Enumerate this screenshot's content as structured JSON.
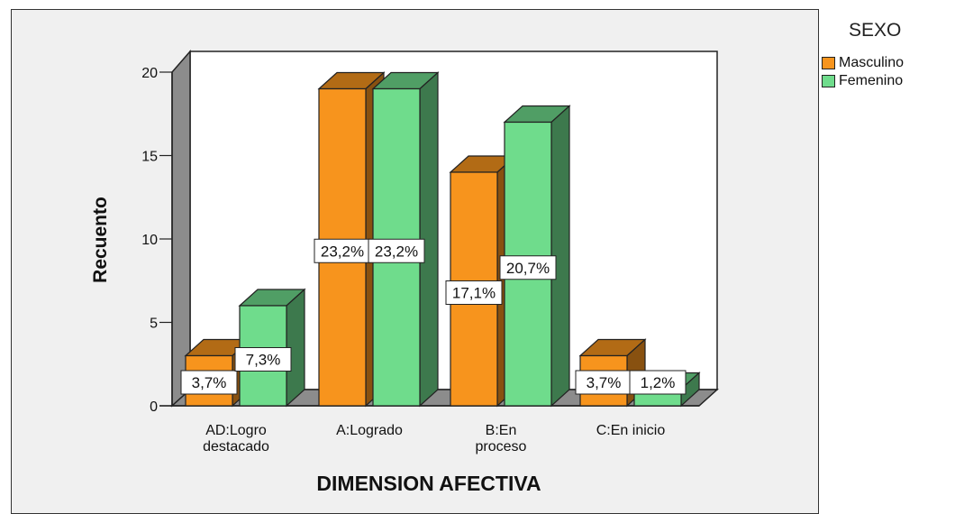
{
  "chart_data": {
    "type": "bar",
    "title": "",
    "xlabel": "DIMENSION AFECTIVA",
    "ylabel": "Recuento",
    "ylim": [
      0,
      20
    ],
    "yticks": [
      "0",
      "5",
      "10",
      "15",
      "20"
    ],
    "categories": [
      [
        "AD:Logro",
        "destacado"
      ],
      [
        "A:Logrado"
      ],
      [
        "B:En",
        "proceso"
      ],
      [
        "C:En inicio"
      ]
    ],
    "legend_title": "SEXO",
    "legend_position": "top-right",
    "series": [
      {
        "name": "Masculino",
        "color": "#f7941d",
        "values": [
          3,
          19,
          14,
          3
        ],
        "labels": [
          "3,7%",
          "23,2%",
          "17,1%",
          "3,7%"
        ]
      },
      {
        "name": "Femenino",
        "color": "#6fdc8c",
        "values": [
          6,
          19,
          17,
          1
        ],
        "labels": [
          "7,3%",
          "23,2%",
          "20,7%",
          "1,2%"
        ]
      }
    ]
  }
}
